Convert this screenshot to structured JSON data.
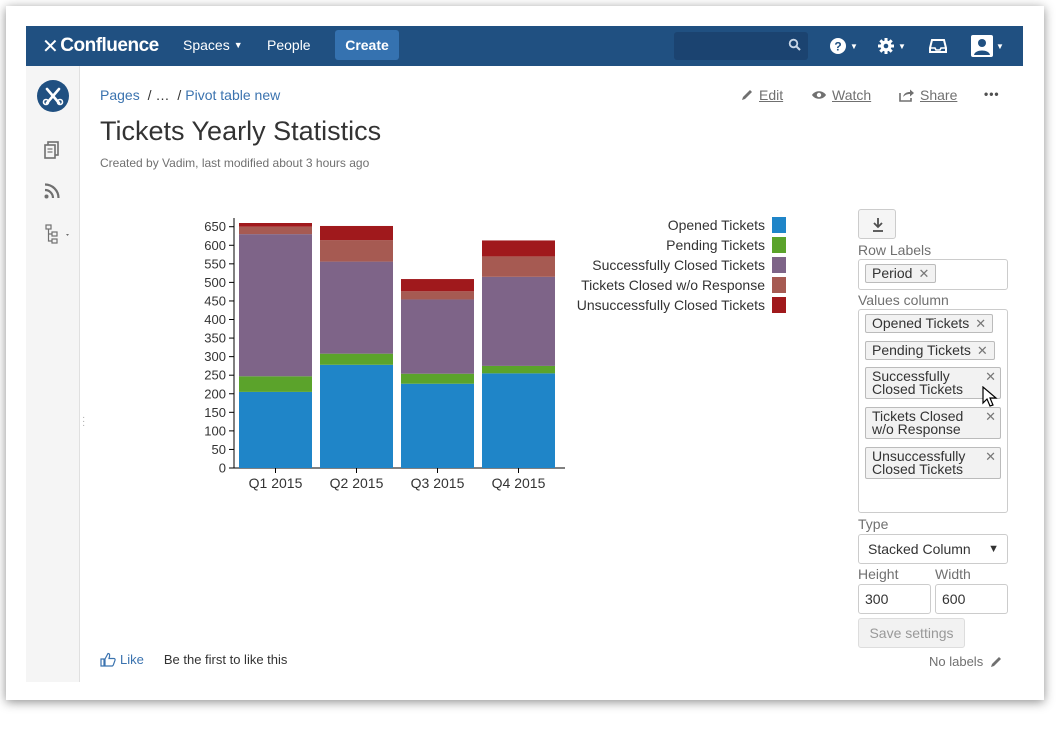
{
  "header": {
    "logo_text": "Confluence",
    "nav": {
      "spaces": "Spaces",
      "people": "People",
      "create": "Create"
    },
    "search_placeholder": ""
  },
  "sidebar": {
    "icons": [
      "space-logo",
      "pages-icon",
      "feed-icon",
      "tree-icon"
    ]
  },
  "breadcrumb": {
    "pages": "Pages",
    "ellipsis": "…",
    "current": "Pivot table new"
  },
  "page_actions": {
    "edit": "Edit",
    "watch": "Watch",
    "share": "Share",
    "more": "•••"
  },
  "page": {
    "title": "Tickets Yearly Statistics",
    "byline": "Created by Vadim, last modified about 3 hours ago"
  },
  "chart_data": {
    "type": "bar",
    "stacked": true,
    "categories": [
      "Q1 2015",
      "Q2 2015",
      "Q3 2015",
      "Q4 2015"
    ],
    "ylim": [
      0,
      660
    ],
    "yticks": [
      0,
      50,
      100,
      150,
      200,
      250,
      300,
      350,
      400,
      450,
      500,
      550,
      600,
      650
    ],
    "series": [
      {
        "name": "Opened Tickets",
        "color": "#1f85c8",
        "values": [
          205,
          278,
          227,
          255
        ]
      },
      {
        "name": "Pending Tickets",
        "color": "#5ba32b",
        "values": [
          42,
          30,
          27,
          20
        ]
      },
      {
        "name": "Successfully Closed Tickets",
        "color": "#7e6488",
        "values": [
          383,
          248,
          200,
          240
        ]
      },
      {
        "name": "Tickets Closed w/o Response",
        "color": "#a65a52",
        "values": [
          20,
          58,
          22,
          55
        ]
      },
      {
        "name": "Unsuccessfully Closed Tickets",
        "color": "#a0191c",
        "values": [
          10,
          38,
          33,
          43
        ]
      }
    ]
  },
  "settings": {
    "row_labels_title": "Row Labels",
    "row_labels": [
      "Period"
    ],
    "values_column_title": "Values column",
    "values_column": [
      "Opened Tickets",
      "Pending Tickets",
      "Successfully Closed Tickets",
      "Tickets Closed w/o Response",
      "Unsuccessfully Closed Tickets"
    ],
    "type_title": "Type",
    "type_value": "Stacked Column",
    "height_title": "Height",
    "height_value": "300",
    "width_title": "Width",
    "width_value": "600",
    "save_label": "Save settings"
  },
  "footer": {
    "like": "Like",
    "first_like": "Be the first to like this",
    "no_labels": "No labels"
  }
}
